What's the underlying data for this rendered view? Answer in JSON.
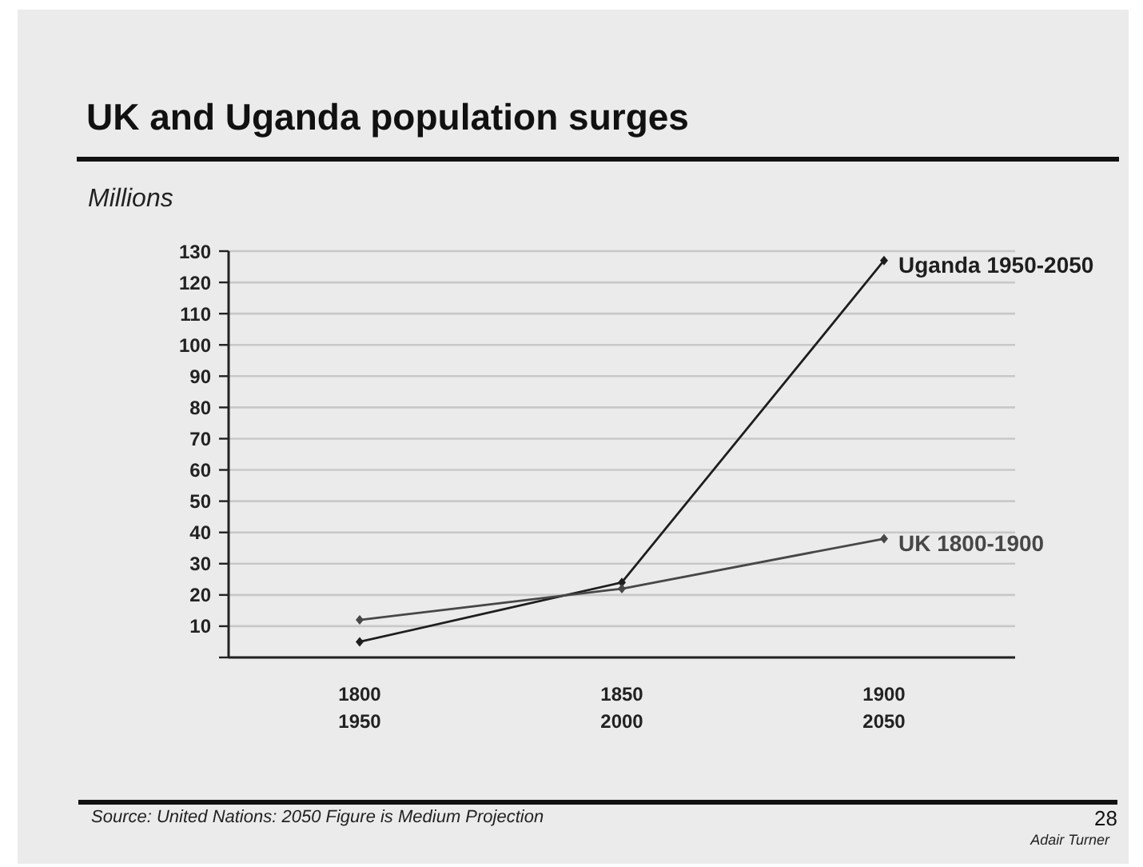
{
  "chart_data": {
    "type": "line",
    "title": "UK and Uganda population surges",
    "ylabel": "Millions",
    "categories": [
      "1800\n1950",
      "1850\n2000",
      "1900\n2050"
    ],
    "series": [
      {
        "name": "Uganda 1950-2050",
        "color": "#1e1e1e",
        "values": [
          5,
          24,
          127
        ]
      },
      {
        "name": "UK 1800-1900",
        "color": "#474747",
        "values": [
          12,
          22,
          38
        ]
      }
    ],
    "ylim": [
      0,
      130
    ],
    "yticks": [
      {
        "value": 0,
        "label": null
      },
      10,
      20,
      30,
      40,
      50,
      60,
      70,
      80,
      90,
      100,
      110,
      120,
      130
    ],
    "grid": "y",
    "marker": "diamond",
    "annotations": [
      "Source: United Nations: 2050 Figure is Medium Projection",
      "28",
      "Adair Turner"
    ]
  }
}
